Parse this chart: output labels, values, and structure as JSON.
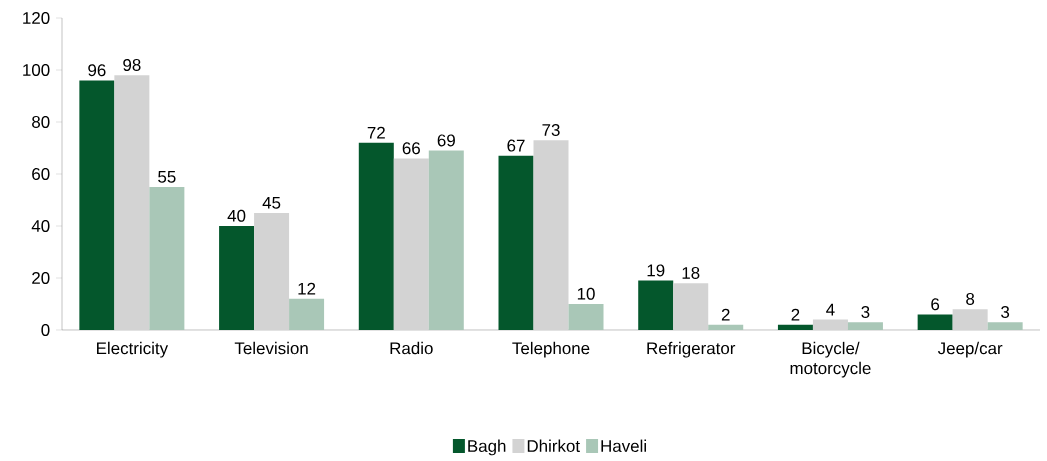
{
  "chart_data": {
    "type": "bar",
    "categories": [
      "Electricity",
      "Television",
      "Radio",
      "Telephone",
      "Refrigerator",
      "Bicycle/ motorcycle",
      "Jeep/car"
    ],
    "series": [
      {
        "name": "Bagh",
        "color": "#04572c",
        "values": [
          96,
          40,
          72,
          67,
          19,
          2,
          6
        ]
      },
      {
        "name": "Dhirkot",
        "color": "#d3d3d3",
        "values": [
          98,
          45,
          66,
          73,
          18,
          4,
          8
        ]
      },
      {
        "name": "Haveli",
        "color": "#a9c7b7",
        "values": [
          55,
          12,
          69,
          10,
          2,
          3,
          3
        ]
      }
    ],
    "ylim": [
      0,
      120
    ],
    "yticks": [
      0,
      20,
      40,
      60,
      80,
      100,
      120
    ],
    "data_labels": true,
    "legend": "bottom",
    "grid": false
  }
}
